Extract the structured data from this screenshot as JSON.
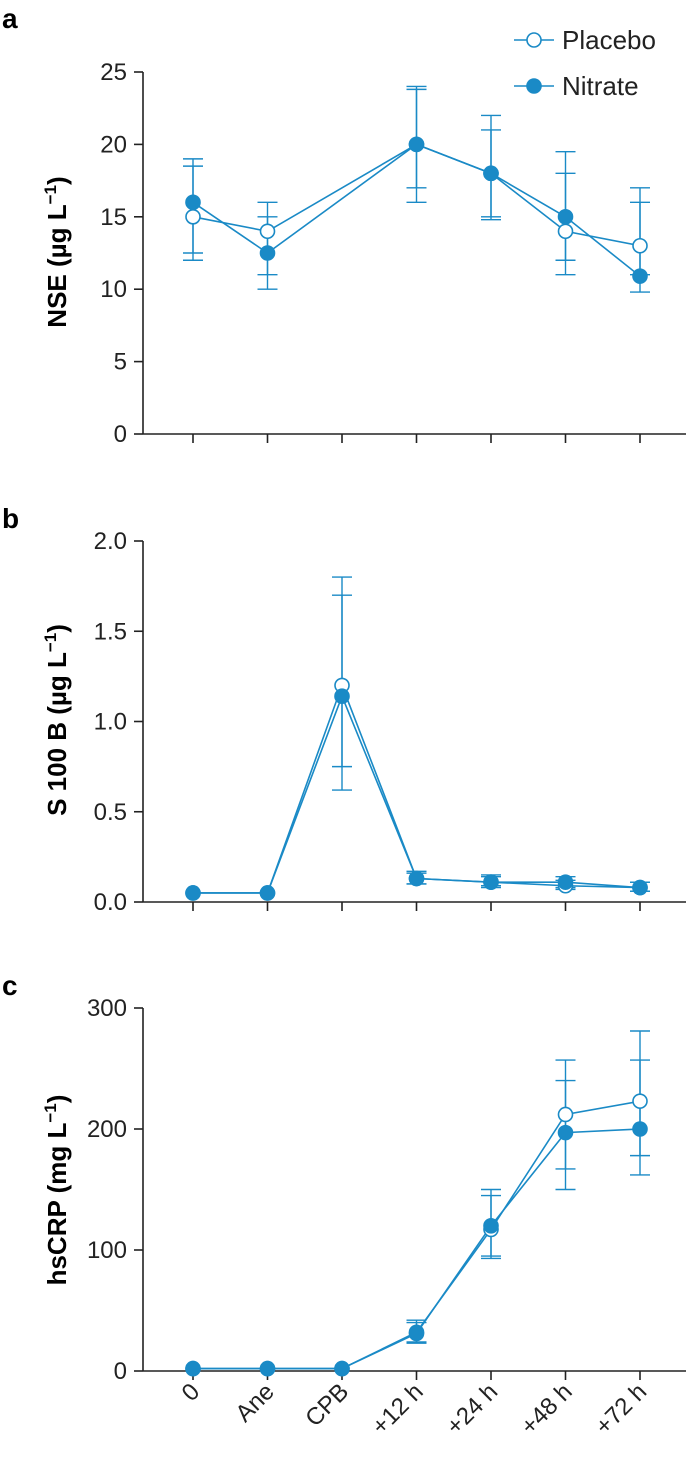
{
  "colors": {
    "series": "#1a8ac6",
    "axis": "#222222"
  },
  "x_categories": [
    "0",
    "Ane",
    "CPB",
    "+12 h",
    "+24 h",
    "+48 h",
    "+72 h"
  ],
  "legend": [
    {
      "name": "Placebo",
      "marker": "open-circle"
    },
    {
      "name": "Nitrate",
      "marker": "filled-circle"
    }
  ],
  "chart_data": [
    {
      "panel": "a",
      "type": "line",
      "ylabel": "NSE (µg L⁻¹)",
      "ylabel_main": "NSE (µg L",
      "ylabel_sup": "−1",
      "ylabel_end": ")",
      "ylim": [
        0,
        25
      ],
      "yticks": [
        0,
        5,
        10,
        15,
        20,
        25
      ],
      "ytick_labels": [
        "0",
        "5",
        "10",
        "15",
        "20",
        "25"
      ],
      "show_x_labels": false,
      "series": [
        {
          "name": "Placebo",
          "points": [
            [
              0,
              15.0
            ],
            [
              1,
              14.0
            ],
            [
              3,
              20.0
            ],
            [
              4,
              18.0
            ],
            [
              5,
              14.0
            ],
            [
              6,
              13.0
            ]
          ],
          "errors": [
            [
              12.0,
              18.5
            ],
            [
              11.0,
              16.0
            ],
            [
              17.0,
              24.0
            ],
            [
              15.0,
              22.0
            ],
            [
              12.0,
              19.5
            ],
            [
              11.0,
              17.0
            ]
          ]
        },
        {
          "name": "Nitrate",
          "points": [
            [
              0,
              16.0
            ],
            [
              1,
              12.5
            ],
            [
              3,
              20.0
            ],
            [
              4,
              18.0
            ],
            [
              5,
              15.0
            ],
            [
              6,
              10.9
            ]
          ],
          "errors": [
            [
              12.5,
              19.0
            ],
            [
              10.0,
              15.0
            ],
            [
              16.0,
              23.8
            ],
            [
              14.8,
              21.0
            ],
            [
              11.0,
              18.0
            ],
            [
              9.8,
              16.0
            ]
          ]
        }
      ]
    },
    {
      "panel": "b",
      "type": "line",
      "ylabel": "S 100 B (µg L⁻¹)",
      "ylabel_main": "S 100 B (µg L",
      "ylabel_sup": "−1",
      "ylabel_end": ")",
      "ylim": [
        0.0,
        2.0
      ],
      "yticks": [
        0.0,
        0.5,
        1.0,
        1.5,
        2.0
      ],
      "ytick_labels": [
        "0.0",
        "0.5",
        "1.0",
        "1.5",
        "2.0"
      ],
      "show_x_labels": false,
      "series": [
        {
          "name": "Placebo",
          "points": [
            [
              0,
              0.05
            ],
            [
              1,
              0.05
            ],
            [
              2,
              1.2
            ],
            [
              3,
              0.13
            ],
            [
              4,
              0.11
            ],
            [
              5,
              0.09
            ],
            [
              6,
              0.08
            ]
          ],
          "errors": [
            [
              0.05,
              0.05
            ],
            [
              0.05,
              0.05
            ],
            [
              0.62,
              1.8
            ],
            [
              0.1,
              0.17
            ],
            [
              0.09,
              0.14
            ],
            [
              0.07,
              0.12
            ],
            [
              0.06,
              0.11
            ]
          ]
        },
        {
          "name": "Nitrate",
          "points": [
            [
              0,
              0.05
            ],
            [
              1,
              0.05
            ],
            [
              2,
              1.14
            ],
            [
              3,
              0.13
            ],
            [
              4,
              0.11
            ],
            [
              5,
              0.11
            ],
            [
              6,
              0.08
            ]
          ],
          "errors": [
            [
              0.05,
              0.05
            ],
            [
              0.05,
              0.05
            ],
            [
              0.75,
              1.7
            ],
            [
              0.1,
              0.16
            ],
            [
              0.08,
              0.15
            ],
            [
              0.08,
              0.14
            ],
            [
              0.06,
              0.11
            ]
          ]
        }
      ]
    },
    {
      "panel": "c",
      "type": "line",
      "ylabel": "hsCRP (mg L⁻¹)",
      "ylabel_main": "hsCRP (mg L",
      "ylabel_sup": "−1",
      "ylabel_end": ")",
      "ylim": [
        0,
        300
      ],
      "yticks": [
        0,
        100,
        200,
        300
      ],
      "ytick_labels": [
        "0",
        "100",
        "200",
        "300"
      ],
      "show_x_labels": true,
      "series": [
        {
          "name": "Placebo",
          "points": [
            [
              0,
              2
            ],
            [
              1,
              2
            ],
            [
              2,
              2
            ],
            [
              3,
              32
            ],
            [
              4,
              117
            ],
            [
              5,
              212
            ],
            [
              6,
              223
            ]
          ],
          "errors": [
            [
              2,
              2
            ],
            [
              2,
              2
            ],
            [
              2,
              2
            ],
            [
              23,
              42
            ],
            [
              93,
              150
            ],
            [
              167,
              257
            ],
            [
              178,
              281
            ]
          ]
        },
        {
          "name": "Nitrate",
          "points": [
            [
              0,
              2
            ],
            [
              1,
              2
            ],
            [
              2,
              2
            ],
            [
              3,
              31
            ],
            [
              4,
              120
            ],
            [
              5,
              197
            ],
            [
              6,
              200
            ]
          ],
          "errors": [
            [
              2,
              2
            ],
            [
              2,
              2
            ],
            [
              2,
              2
            ],
            [
              24,
              40
            ],
            [
              95,
              145
            ],
            [
              150,
              240
            ],
            [
              162,
              257
            ]
          ]
        }
      ]
    }
  ]
}
